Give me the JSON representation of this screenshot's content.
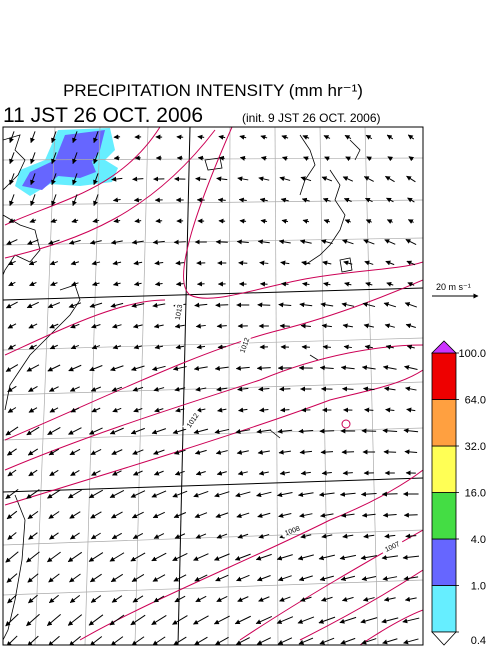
{
  "title": "PRECIPITATION INTENSITY (mm hr⁻¹)",
  "valid_time": "11 JST 26 OCT. 2006",
  "init_time": "(init. 9 JST 26 OCT. 2006)",
  "vector_scale": "20 m s⁻¹",
  "colorbar": {
    "levels": [
      {
        "value": 0.4,
        "label": "0.4"
      },
      {
        "value": 1,
        "label": "1.0"
      },
      {
        "value": 4,
        "label": "4.0"
      },
      {
        "value": 16,
        "label": "16.0"
      },
      {
        "value": 32,
        "label": "32.0"
      },
      {
        "value": 64,
        "label": "64.0"
      },
      {
        "value": 100,
        "label": "100.0"
      }
    ],
    "colors": [
      "#66eeff",
      "#6666ff",
      "#44dd44",
      "#ffff55",
      "#ffa040",
      "#ee0000"
    ],
    "under_color": "#ffffff",
    "over_color": "#cc33ff"
  },
  "isobar_labels": [
    1013,
    1012,
    1012,
    1008,
    1007
  ]
}
